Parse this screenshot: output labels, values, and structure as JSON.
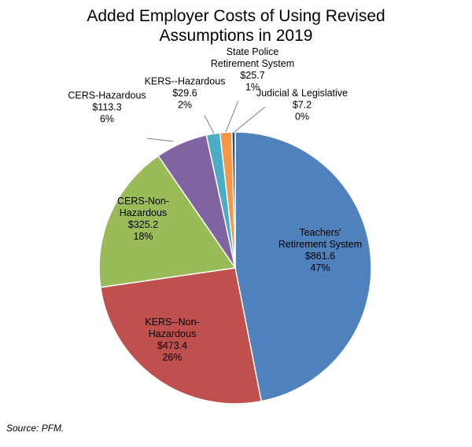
{
  "chart_title": {
    "line1": "Added Employer Costs of Using Revised",
    "line2": "Assumptions in 2019"
  },
  "source_note": "Source: PFM.",
  "chart_data": {
    "type": "pie",
    "title": "Added Employer Costs of Using Revised Assumptions in 2019",
    "slices": [
      {
        "name_lines": [
          "Teachers'",
          "Retirement System"
        ],
        "value": 861.6,
        "value_label": "$861.6",
        "percent_label": "47%",
        "color": "#4F81BD",
        "label_placement": "inside"
      },
      {
        "name_lines": [
          "KERS--Non-",
          "Hazardous"
        ],
        "value": 473.4,
        "value_label": "$473.4",
        "percent_label": "26%",
        "color": "#C0504D",
        "label_placement": "inside"
      },
      {
        "name_lines": [
          "CERS-Non-",
          "Hazardous"
        ],
        "value": 325.2,
        "value_label": "$325.2",
        "percent_label": "18%",
        "color": "#9BBB59",
        "label_placement": "inside"
      },
      {
        "name_lines": [
          "CERS-Hazardous"
        ],
        "value": 113.3,
        "value_label": "$113.3",
        "percent_label": "6%",
        "color": "#8064A2",
        "label_placement": "outside"
      },
      {
        "name_lines": [
          "KERS--Hazardous"
        ],
        "value": 29.6,
        "value_label": "$29.6",
        "percent_label": "2%",
        "color": "#4BACC6",
        "label_placement": "outside"
      },
      {
        "name_lines": [
          "State Police",
          "Retirement System"
        ],
        "value": 25.7,
        "value_label": "$25.7",
        "percent_label": "1%",
        "color": "#F79646",
        "label_placement": "outside"
      },
      {
        "name_lines": [
          "Judicial & Legislative"
        ],
        "value": 7.2,
        "value_label": "$7.2",
        "percent_label": "0%",
        "color": "#2C4D75",
        "label_placement": "outside"
      }
    ]
  }
}
